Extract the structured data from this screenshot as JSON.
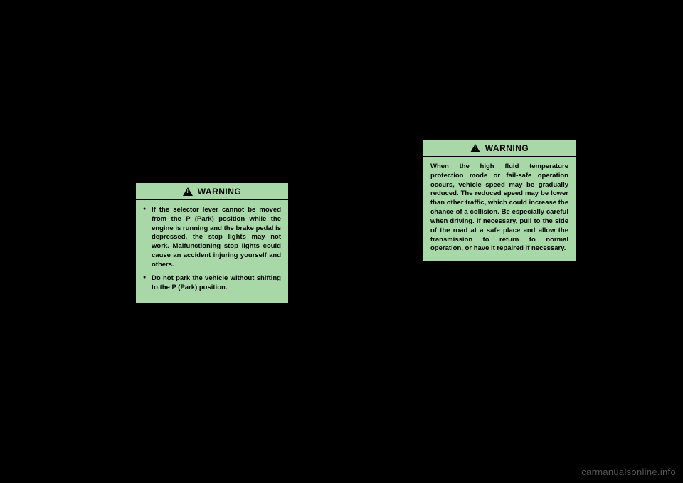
{
  "box1": {
    "header": "WARNING",
    "items": [
      "If the selector lever cannot be moved from the P (Park) position while the engine is running and the brake pedal is depressed, the stop lights may not work. Malfunctioning stop lights could cause an accident injuring yourself and others.",
      "Do not park the vehicle without shifting to the P (Park) position."
    ]
  },
  "box2": {
    "header": "WARNING",
    "body": "When the high fluid temperature protection mode or fail-safe operation occurs, vehicle speed may be gradually reduced. The reduced speed may be lower than other traffic, which could increase the chance of a collision. Be especially careful when driving. If necessary, pull to the side of the road at a safe place and allow the transmission to return to normal operation, or have it repaired if necessary."
  },
  "watermark": "carmanualsonline.info"
}
